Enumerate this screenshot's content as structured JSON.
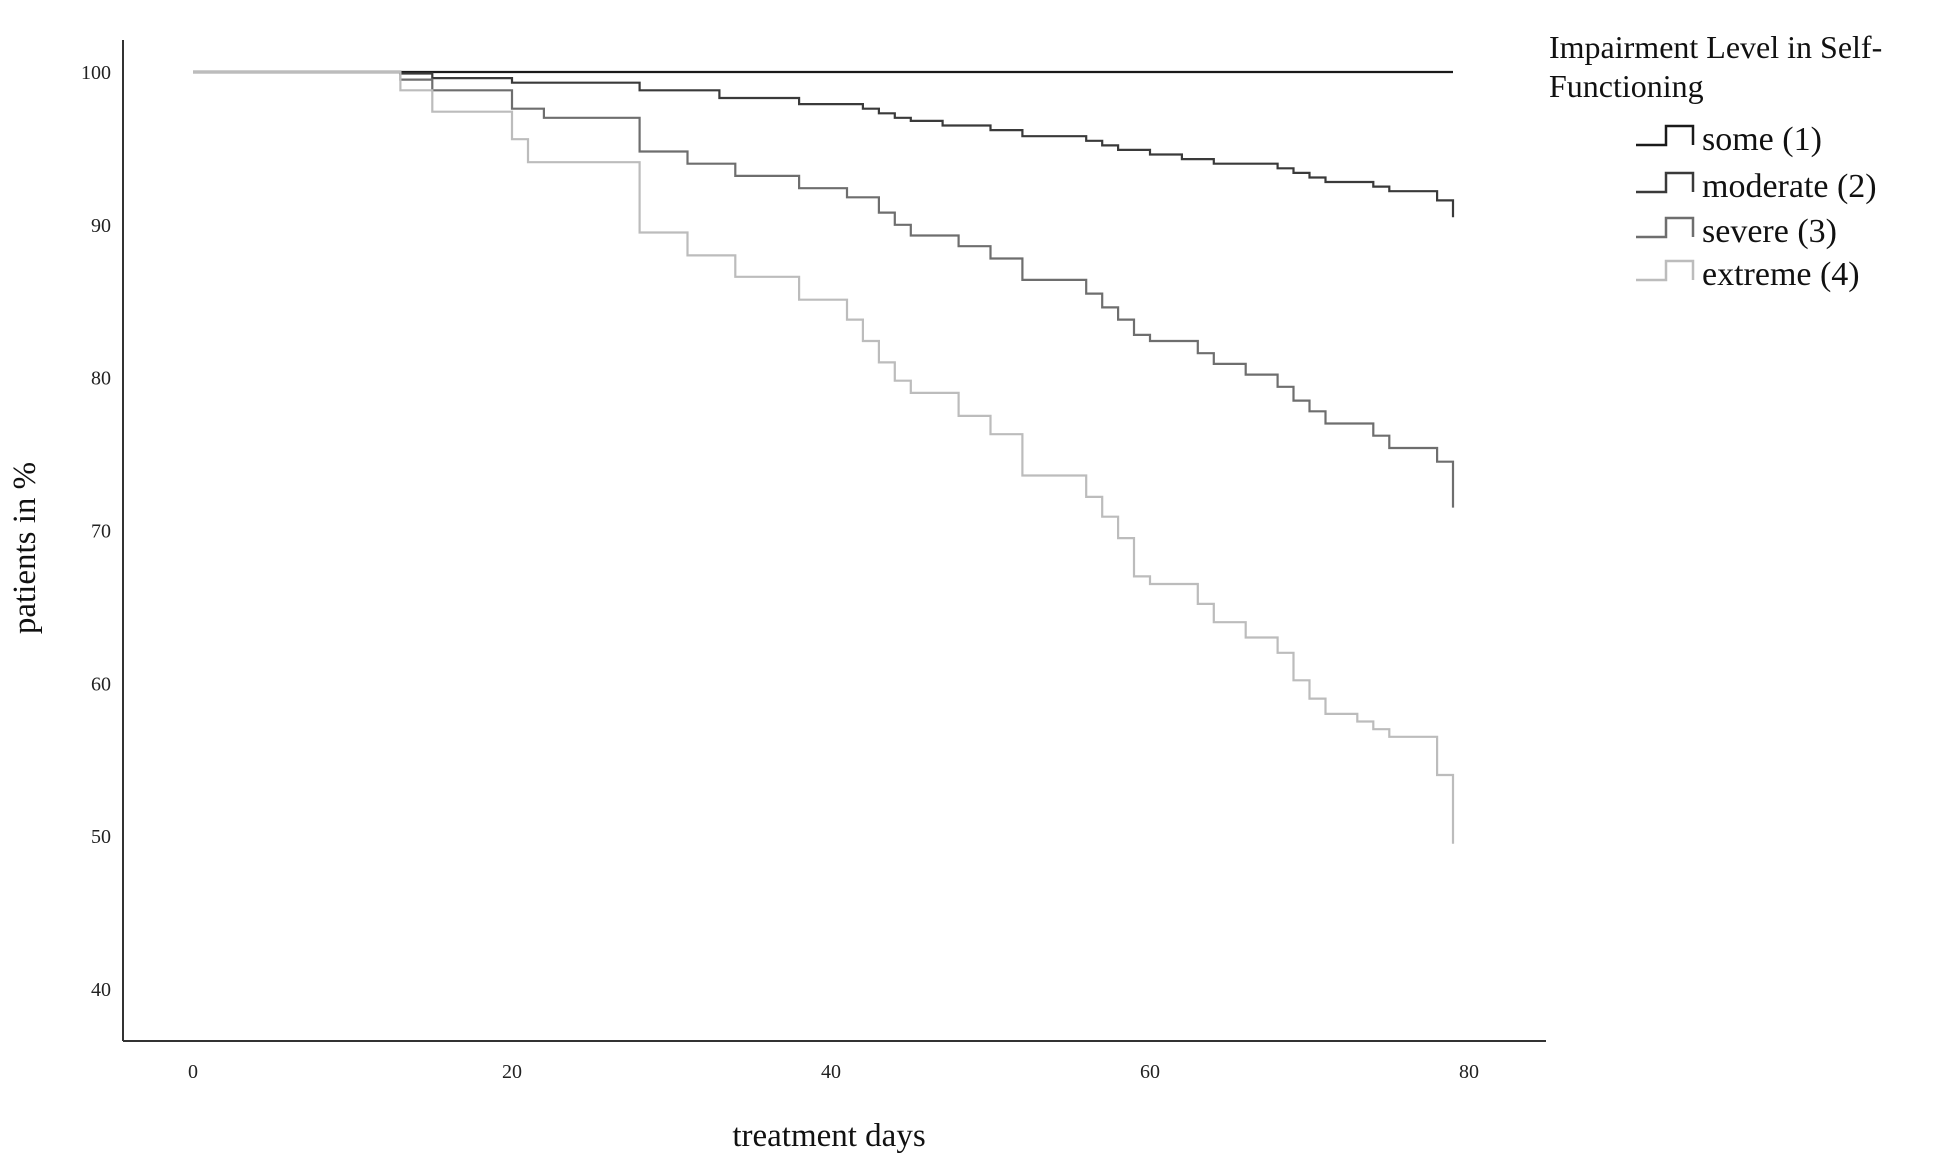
{
  "chart_data": {
    "type": "line",
    "step": true,
    "xlabel": "treatment days",
    "ylabel": "patients in %",
    "xlim": [
      -4,
      84
    ],
    "ylim": [
      37,
      103
    ],
    "xticks": [
      0,
      20,
      40,
      60,
      80
    ],
    "yticks": [
      40,
      50,
      60,
      70,
      80,
      90,
      100
    ],
    "grid": false,
    "legend": {
      "title_lines": [
        "Impairment Level in Self-",
        "Functioning"
      ],
      "placement": "top-right, outside plot"
    },
    "series": [
      {
        "name": "some (1)",
        "color": "#1a1a1a",
        "x": [
          0,
          79
        ],
        "y": [
          100,
          100
        ]
      },
      {
        "name": "moderate (2)",
        "color": "#3a3a3a",
        "x": [
          0,
          13,
          15,
          20,
          28,
          33,
          38,
          42,
          43,
          44,
          45,
          47,
          50,
          52,
          56,
          57,
          58,
          60,
          62,
          64,
          68,
          69,
          70,
          71,
          74,
          75,
          78,
          79
        ],
        "y": [
          100,
          99.9,
          99.6,
          99.3,
          98.8,
          98.3,
          97.9,
          97.6,
          97.3,
          97.0,
          96.8,
          96.5,
          96.2,
          95.8,
          95.5,
          95.2,
          94.9,
          94.6,
          94.3,
          94.0,
          93.7,
          93.4,
          93.1,
          92.8,
          92.5,
          92.2,
          91.6,
          90.5
        ]
      },
      {
        "name": "severe (3)",
        "color": "#6e6e6e",
        "x": [
          0,
          13,
          15,
          20,
          22,
          28,
          31,
          34,
          38,
          41,
          43,
          44,
          45,
          48,
          50,
          52,
          56,
          57,
          58,
          59,
          60,
          63,
          64,
          66,
          68,
          69,
          70,
          71,
          74,
          75,
          78,
          79
        ],
        "y": [
          100,
          99.5,
          98.8,
          97.6,
          97.0,
          94.8,
          94.0,
          93.2,
          92.4,
          91.8,
          90.8,
          90.0,
          89.3,
          88.6,
          87.8,
          86.4,
          85.5,
          84.6,
          83.8,
          82.8,
          82.4,
          81.6,
          80.9,
          80.2,
          79.4,
          78.5,
          77.8,
          77.0,
          76.2,
          75.4,
          74.5,
          71.5
        ]
      },
      {
        "name": "extreme (4)",
        "color": "#bcbcbc",
        "x": [
          0,
          13,
          15,
          20,
          21,
          28,
          31,
          34,
          38,
          41,
          42,
          43,
          44,
          45,
          48,
          50,
          52,
          56,
          57,
          58,
          59,
          60,
          63,
          64,
          66,
          68,
          69,
          70,
          71,
          73,
          74,
          75,
          78,
          79
        ],
        "y": [
          100,
          98.8,
          97.4,
          95.6,
          94.1,
          89.5,
          88.0,
          86.6,
          85.1,
          83.8,
          82.4,
          81.0,
          79.8,
          79.0,
          77.5,
          76.3,
          73.6,
          72.2,
          70.9,
          69.5,
          67.0,
          66.5,
          65.2,
          64.0,
          63.0,
          62.0,
          60.2,
          59.0,
          58.0,
          57.5,
          57.0,
          56.5,
          54.0,
          49.5
        ]
      }
    ]
  }
}
